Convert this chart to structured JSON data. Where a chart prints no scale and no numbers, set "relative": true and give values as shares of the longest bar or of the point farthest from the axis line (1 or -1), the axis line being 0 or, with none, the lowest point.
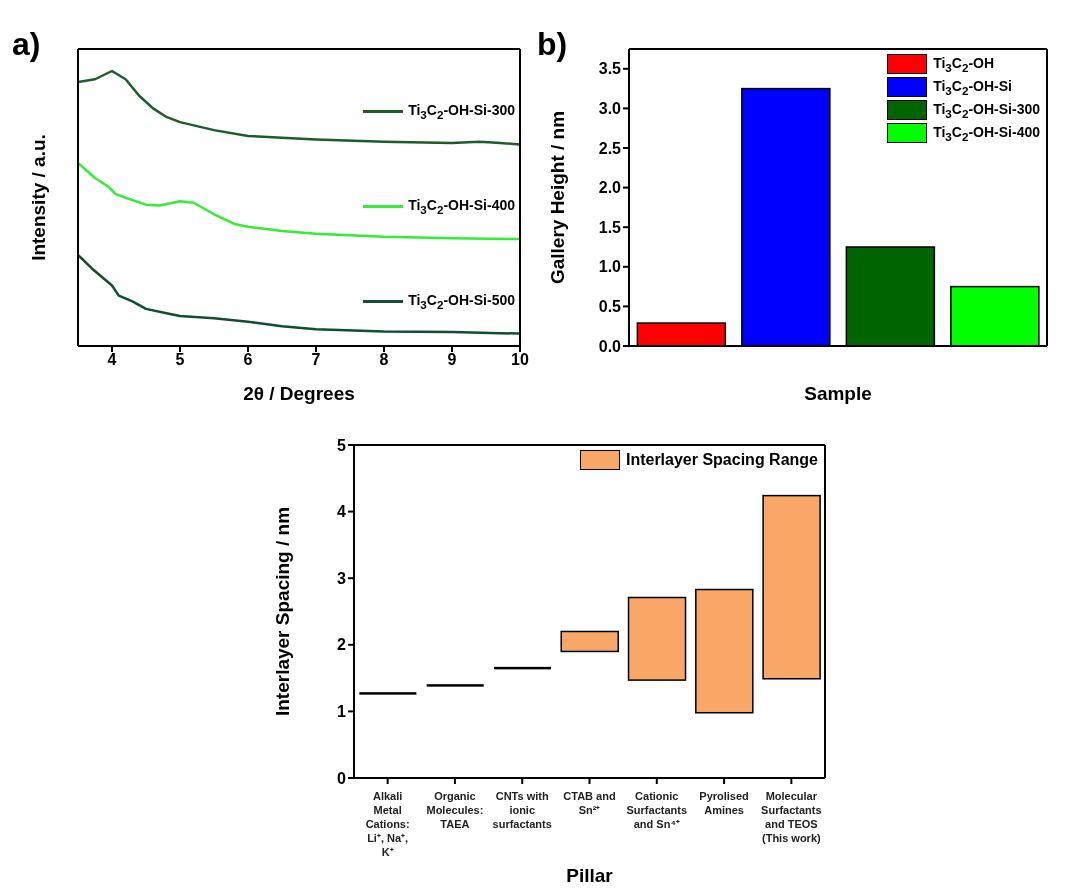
{
  "chart_data": [
    {
      "type": "line",
      "annotations": [
        "a)"
      ],
      "xlabel": "2θ / Degrees",
      "ylabel": "Intensity / a.u.",
      "xlim": [
        3.5,
        10
      ],
      "xticks": [
        4,
        5,
        6,
        7,
        8,
        9,
        10
      ],
      "relative": true,
      "tick_labels": "x",
      "legend": "right",
      "marker": "none",
      "line_style": "solid",
      "series": [
        {
          "name": "Ti$_{3}$C$_{2}$-OH-Si-300",
          "color": "#1b5e28",
          "x": [
            3.5,
            3.75,
            4.0,
            4.2,
            4.4,
            4.6,
            4.8,
            5.0,
            5.5,
            6.0,
            6.5,
            7.0,
            8.0,
            9.0,
            9.4,
            9.6,
            10.0
          ],
          "values": [
            0.96,
            0.97,
            1.0,
            0.97,
            0.91,
            0.865,
            0.833,
            0.814,
            0.785,
            0.764,
            0.757,
            0.751,
            0.743,
            0.738,
            0.743,
            0.74,
            0.733
          ]
        },
        {
          "name": "Ti$_{3}$C$_{2}$-OH-Si-400",
          "color": "#33ee33",
          "x": [
            3.5,
            3.75,
            3.95,
            4.05,
            4.2,
            4.5,
            4.7,
            5.0,
            5.2,
            5.5,
            5.8,
            6.0,
            6.5,
            7.0,
            8.0,
            9.0,
            10.0
          ],
          "values": [
            0.666,
            0.611,
            0.579,
            0.553,
            0.539,
            0.514,
            0.511,
            0.526,
            0.521,
            0.479,
            0.444,
            0.434,
            0.418,
            0.408,
            0.397,
            0.392,
            0.389
          ]
        },
        {
          "name": "Ti$_{3}$C$_{2}$-OH-Si-500",
          "color": "#0e5030",
          "x": [
            3.5,
            3.7,
            3.9,
            4.0,
            4.1,
            4.3,
            4.5,
            4.8,
            5.0,
            5.5,
            6.0,
            6.5,
            7.0,
            8.0,
            9.0,
            10.0
          ],
          "values": [
            0.331,
            0.283,
            0.241,
            0.22,
            0.183,
            0.162,
            0.135,
            0.119,
            0.109,
            0.101,
            0.088,
            0.072,
            0.061,
            0.053,
            0.051,
            0.045
          ]
        }
      ]
    },
    {
      "type": "bar",
      "annotations": [
        "b)"
      ],
      "xlabel": "Sample",
      "ylabel": "Gallery Height / nm",
      "categories": [
        null,
        null,
        null,
        null
      ],
      "ylim": [
        0,
        3.75
      ],
      "yticks": [
        {
          "value": 0,
          "label": "0.0"
        },
        0.5,
        {
          "value": 1,
          "label": "1.0"
        },
        1.5,
        {
          "value": 2,
          "label": "2.0"
        },
        2.5,
        {
          "value": 3,
          "label": "3.0"
        },
        3.5
      ],
      "tick_labels": "y",
      "legend": "top right",
      "series": [
        {
          "name": "Ti$_{3}$C$_{2}$-OH",
          "color": "#ff0000",
          "values": [
            0.29,
            null,
            null,
            null
          ]
        },
        {
          "name": "Ti$_{3}$C$_{2}$-OH-Si",
          "color": "#0000ff",
          "values": [
            null,
            3.25,
            null,
            null
          ]
        },
        {
          "name": "Ti$_{3}$C$_{2}$-OH-Si-300",
          "color": "#006400",
          "values": [
            null,
            null,
            1.25,
            null
          ]
        },
        {
          "name": "Ti$_{3}$C$_{2}$-OH-Si-400",
          "color": "#00ff00",
          "values": [
            null,
            null,
            null,
            0.75
          ]
        }
      ]
    },
    {
      "type": "bar",
      "xlabel": "Pillar",
      "ylabel": "Interlayer Spacing / nm",
      "categories": [
        "Alkali Metal Cations: Li⁺, Na⁺, K⁺",
        "Organic Molecules: TAEA",
        "CNTs with ionic surfactants",
        "CTAB and Sn²⁺",
        "Cationic Surfactants and Sn⁴⁺",
        "Pyrolised Amines",
        "Molecular Surfactants and TEOS (This work)"
      ],
      "ylim": [
        0,
        5
      ],
      "yticks": [
        0,
        1,
        2,
        3,
        4,
        5
      ],
      "legend": "top right",
      "series": [
        {
          "name": "Interlayer Spacing Range",
          "color": "#f8a766",
          "colors": [
            "#000000",
            "#000000",
            "#000000",
            "#f8a766",
            "#f8a766",
            "#f8a766",
            "#f8a766"
          ],
          "base": [
            1.27,
            1.39,
            1.65,
            1.9,
            1.47,
            0.98,
            1.49
          ],
          "values": [
            0,
            0,
            0,
            0.3,
            1.24,
            1.85,
            2.75
          ]
        }
      ]
    }
  ]
}
